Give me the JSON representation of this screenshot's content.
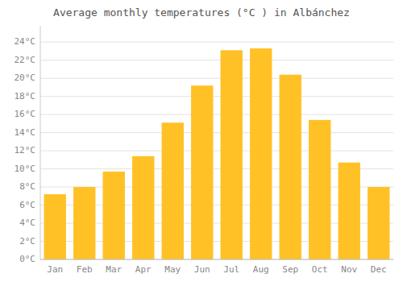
{
  "chart_data": {
    "type": "bar",
    "title": "Average monthly temperatures (°C ) in Albánchez",
    "categories": [
      "Jan",
      "Feb",
      "Mar",
      "Apr",
      "May",
      "Jun",
      "Jul",
      "Aug",
      "Sep",
      "Oct",
      "Nov",
      "Dec"
    ],
    "values": [
      7.2,
      8.0,
      9.7,
      11.4,
      15.1,
      19.2,
      23.1,
      23.3,
      20.4,
      15.4,
      10.7,
      8.0
    ],
    "color": "#FFC125",
    "ylim": [
      0,
      25.8
    ],
    "yticks": [
      {
        "value": 0,
        "label": "0°C"
      },
      {
        "value": 2,
        "label": "2°C"
      },
      {
        "value": 4,
        "label": "4°C"
      },
      {
        "value": 6,
        "label": "6°C"
      },
      {
        "value": 8,
        "label": "8°C"
      },
      {
        "value": 10,
        "label": "10°C"
      },
      {
        "value": 12,
        "label": "12°C"
      },
      {
        "value": 14,
        "label": "14°C"
      },
      {
        "value": 16,
        "label": "16°C"
      },
      {
        "value": 18,
        "label": "18°C"
      },
      {
        "value": 20,
        "label": "20°C"
      },
      {
        "value": 22,
        "label": "22°C"
      },
      {
        "value": 24,
        "label": "24°C"
      }
    ],
    "grid": true
  }
}
